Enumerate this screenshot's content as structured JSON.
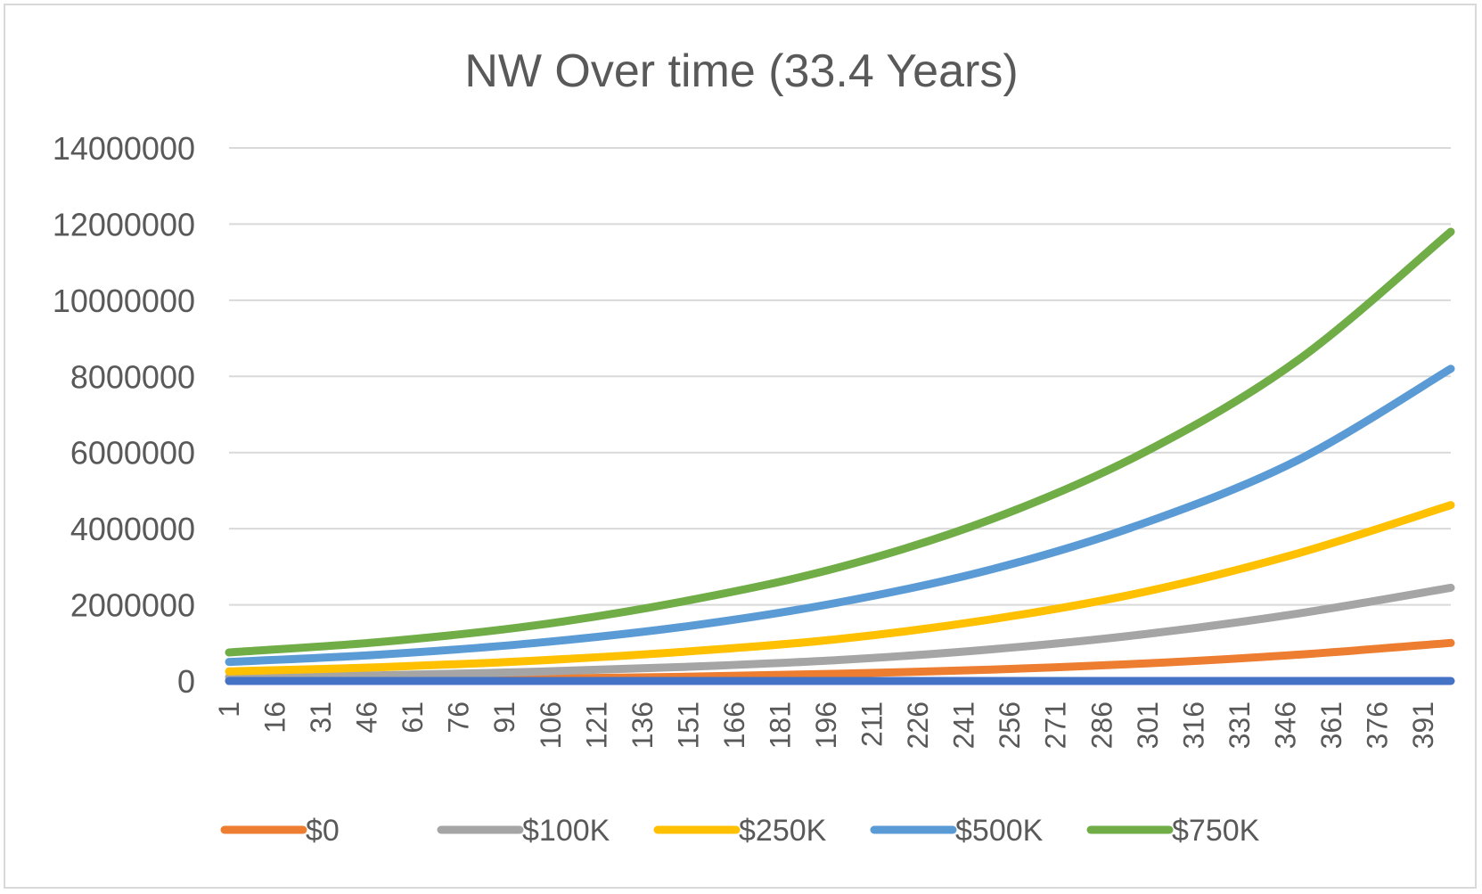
{
  "chart_data": {
    "type": "line",
    "title": "NW Over time (33.4 Years)",
    "xlabel": "",
    "ylabel": "",
    "x_range": [
      1,
      400
    ],
    "x_tick_labels": [
      "1",
      "16",
      "31",
      "46",
      "61",
      "76",
      "91",
      "106",
      "121",
      "136",
      "151",
      "166",
      "181",
      "196",
      "211",
      "226",
      "241",
      "256",
      "271",
      "286",
      "301",
      "316",
      "331",
      "346",
      "361",
      "376",
      "391"
    ],
    "ylim": [
      0,
      14000000
    ],
    "y_tick_labels": [
      "0",
      "2000000",
      "4000000",
      "6000000",
      "8000000",
      "10000000",
      "12000000",
      "14000000"
    ],
    "grid": true,
    "legend_position": "bottom",
    "x": [
      1,
      50,
      100,
      150,
      200,
      250,
      300,
      350,
      400
    ],
    "series": [
      {
        "name": "$0",
        "color": "#ED7D31",
        "values": [
          0,
          20000,
          60000,
          110000,
          190000,
          300000,
          460000,
          690000,
          1000000
        ]
      },
      {
        "name": "$100K",
        "color": "#A5A5A5",
        "values": [
          100000,
          150000,
          240000,
          370000,
          550000,
          830000,
          1230000,
          1770000,
          2450000
        ]
      },
      {
        "name": "$250K",
        "color": "#FFC000",
        "values": [
          250000,
          360000,
          530000,
          770000,
          1100000,
          1620000,
          2340000,
          3350000,
          4620000
        ]
      },
      {
        "name": "$500K",
        "color": "#5B9BD5",
        "values": [
          500000,
          690000,
          990000,
          1430000,
          2060000,
          2930000,
          4150000,
          5800000,
          8200000
        ]
      },
      {
        "name": "$750K",
        "color": "#70AD47",
        "values": [
          750000,
          1020000,
          1450000,
          2100000,
          2980000,
          4250000,
          6010000,
          8420000,
          11800000
        ]
      },
      {
        "name": "",
        "color": "#4472C4",
        "values": [
          0,
          0,
          0,
          0,
          0,
          0,
          0,
          0,
          0
        ]
      }
    ]
  }
}
